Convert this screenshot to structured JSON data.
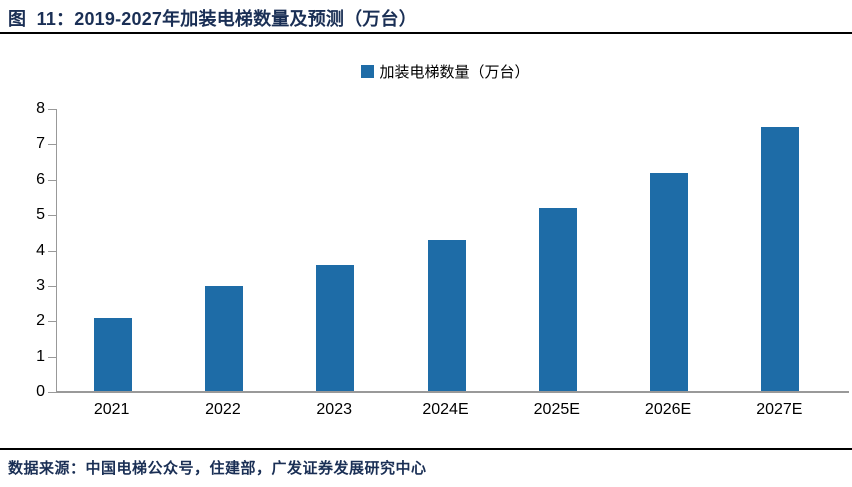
{
  "header": {
    "title": "图  11：2019-2027年加装电梯数量及预测（万台）"
  },
  "legend": {
    "label": "加装电梯数量（万台）"
  },
  "footer": {
    "source": "数据来源：中国电梯公众号，住建部，广发证券发展研究中心"
  },
  "colors": {
    "bar": "#1E6CA7",
    "axis": "#999999",
    "title_text": "#1A2F55",
    "source_text": "#1A2F55",
    "rule": "#000000",
    "label_text": "#000000"
  },
  "chart_data": {
    "type": "bar",
    "title": "2019-2027年加装电梯数量及预测（万台）",
    "categories": [
      "2021",
      "2022",
      "2023",
      "2024E",
      "2025E",
      "2026E",
      "2027E"
    ],
    "values": [
      2.1,
      3.0,
      3.6,
      4.3,
      5.2,
      6.2,
      7.5
    ],
    "series_name": "加装电梯数量（万台）",
    "xlabel": "",
    "ylabel": "",
    "ylim": [
      0,
      8
    ],
    "ytick_step": 1,
    "yticks": [
      0,
      1,
      2,
      3,
      4,
      5,
      6,
      7,
      8
    ],
    "grid": false,
    "legend_position": "top-center",
    "bar_color": "#1E6CA7"
  }
}
